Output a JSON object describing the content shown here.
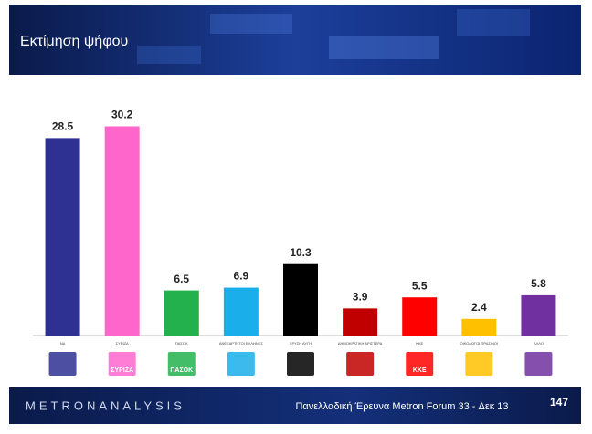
{
  "chart_data": {
    "type": "bar",
    "title": "Εκτίμηση ψήφου",
    "categories": [
      "ΝΔ",
      "ΣΥΡΙΖΑ",
      "ΠΑΣΟΚ",
      "ΑΝΕΞΑΡΤΗΤΟΙ ΕΛΛΗΝΕΣ",
      "ΧΡΥΣΗ ΑΥΓΗ",
      "ΔΗΜΟΚΡΑΤΙΚΗ ΑΡΙΣΤΕΡΑ",
      "ΚΚΕ",
      "ΟΙΚΟΛΟΓΟΙ ΠΡΑΣΙΝΟΙ",
      "ΑΛΛΟ"
    ],
    "values": [
      28.5,
      30.2,
      6.5,
      6.9,
      10.3,
      3.9,
      5.5,
      2.4,
      5.8
    ],
    "colors": [
      "#2e3192",
      "#ff66cc",
      "#22b14c",
      "#1aaeea",
      "#000000",
      "#c00000",
      "#ff0000",
      "#ffc000",
      "#7030a0"
    ],
    "logo_labels": [
      null,
      "ΣΥΡΙΖΑ",
      "ΠΑΣΟΚ",
      null,
      null,
      null,
      "ΚΚΕ",
      null,
      null
    ],
    "ylim": [
      0,
      30
    ],
    "footer": {
      "brand": "METRONANALYSIS",
      "survey": "Πανελλαδική Έρευνα Metron Forum 33 - Δεκ 13",
      "page": "147"
    }
  }
}
